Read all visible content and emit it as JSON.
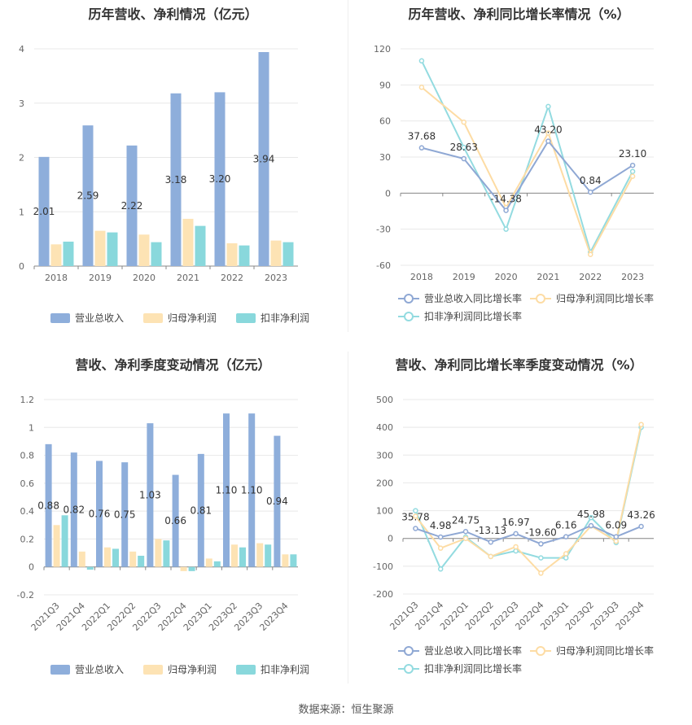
{
  "source": "数据来源：恒生聚源",
  "legend_bars": [
    "营业总收入",
    "归母净利润",
    "扣非净利润"
  ],
  "legend_lines": [
    "营业总收入同比增长率",
    "归母净利润同比增长率",
    "扣非净利润同比增长率"
  ],
  "colors": {
    "rev": "#8eaedb",
    "net": "#fde3b4",
    "ded": "#89d8dc",
    "rev_line": "#8fa8d4",
    "net_line": "#fddca4",
    "ded_line": "#93dbe0"
  },
  "chart_data": [
    {
      "type": "bar",
      "title": "历年营收、净利情况（亿元）",
      "categories": [
        "2018",
        "2019",
        "2020",
        "2021",
        "2022",
        "2023"
      ],
      "ylim": [
        0,
        4
      ],
      "yticks": [
        0,
        1,
        2,
        3,
        4
      ],
      "series": [
        {
          "name": "营业总收入",
          "values": [
            2.01,
            2.59,
            2.22,
            3.18,
            3.2,
            3.94
          ],
          "labels": [
            "2.01",
            "2.59",
            "2.22",
            "3.18",
            "3.20",
            "3.94"
          ]
        },
        {
          "name": "归母净利润",
          "values": [
            0.4,
            0.65,
            0.58,
            0.87,
            0.42,
            0.47
          ]
        },
        {
          "name": "扣非净利润",
          "values": [
            0.45,
            0.62,
            0.44,
            0.74,
            0.38,
            0.44
          ]
        }
      ]
    },
    {
      "type": "line",
      "title": "历年营收、净利同比增长率情况（%）",
      "categories": [
        "2018",
        "2019",
        "2020",
        "2021",
        "2022",
        "2023"
      ],
      "ylim": [
        -60,
        120
      ],
      "yticks": [
        -60,
        -30,
        0,
        30,
        60,
        90,
        120
      ],
      "series": [
        {
          "name": "营业总收入同比增长率",
          "values": [
            37.68,
            28.63,
            -14.38,
            43.2,
            0.84,
            23.1
          ],
          "labels": [
            "37.68",
            "28.63",
            "-14.38",
            "43.20",
            "0.84",
            "23.10"
          ]
        },
        {
          "name": "归母净利润同比增长率",
          "values": [
            88,
            59,
            -12,
            50,
            -51,
            14
          ]
        },
        {
          "name": "扣非净利润同比增长率",
          "values": [
            110,
            38,
            -30,
            72,
            -49,
            18
          ]
        }
      ]
    },
    {
      "type": "bar",
      "title": "营收、净利季度变动情况（亿元）",
      "categories": [
        "2021Q3",
        "2021Q4",
        "2022Q1",
        "2022Q2",
        "2022Q3",
        "2022Q4",
        "2023Q1",
        "2023Q2",
        "2023Q3",
        "2023Q4"
      ],
      "ylim": [
        -0.2,
        1.2
      ],
      "yticks": [
        -0.2,
        0,
        0.2,
        0.4,
        0.6,
        0.8,
        1,
        1.2
      ],
      "series": [
        {
          "name": "营业总收入",
          "values": [
            0.88,
            0.82,
            0.76,
            0.75,
            1.03,
            0.66,
            0.81,
            1.1,
            1.1,
            0.94
          ],
          "labels": [
            "0.88",
            "0.82",
            "0.76",
            "0.75",
            "1.03",
            "0.66",
            "0.81",
            "1.10",
            "1.10",
            "0.94"
          ]
        },
        {
          "name": "归母净利润",
          "values": [
            0.3,
            0.11,
            0.14,
            0.11,
            0.2,
            -0.03,
            0.06,
            0.16,
            0.17,
            0.09
          ]
        },
        {
          "name": "扣非净利润",
          "values": [
            0.37,
            -0.02,
            0.13,
            0.08,
            0.19,
            -0.03,
            0.04,
            0.14,
            0.16,
            0.09
          ]
        }
      ]
    },
    {
      "type": "line",
      "title": "营收、净利同比增长率季度变动情况（%）",
      "categories": [
        "2021Q3",
        "2021Q4",
        "2022Q1",
        "2022Q2",
        "2022Q3",
        "2022Q4",
        "2023Q1",
        "2023Q2",
        "2023Q3",
        "2023Q4"
      ],
      "ylim": [
        -200,
        500
      ],
      "yticks": [
        -200,
        -100,
        0,
        100,
        200,
        300,
        400,
        500
      ],
      "series": [
        {
          "name": "营业总收入同比增长率",
          "values": [
            35.78,
            4.98,
            24.75,
            -13.13,
            16.97,
            -19.6,
            6.16,
            45.98,
            6.09,
            43.26
          ],
          "labels": [
            "35.78",
            "4.98",
            "24.75",
            "-13.13",
            "16.97",
            "-19.60",
            "6.16",
            "45.98",
            "6.09",
            "43.26"
          ]
        },
        {
          "name": "归母净利润同比增长率",
          "values": [
            80,
            -35,
            0,
            -65,
            -30,
            -125,
            -55,
            45,
            -10,
            410
          ]
        },
        {
          "name": "扣非净利润同比增长率",
          "values": [
            100,
            -110,
            5,
            -65,
            -45,
            -70,
            -70,
            75,
            -15,
            400
          ]
        }
      ]
    }
  ]
}
